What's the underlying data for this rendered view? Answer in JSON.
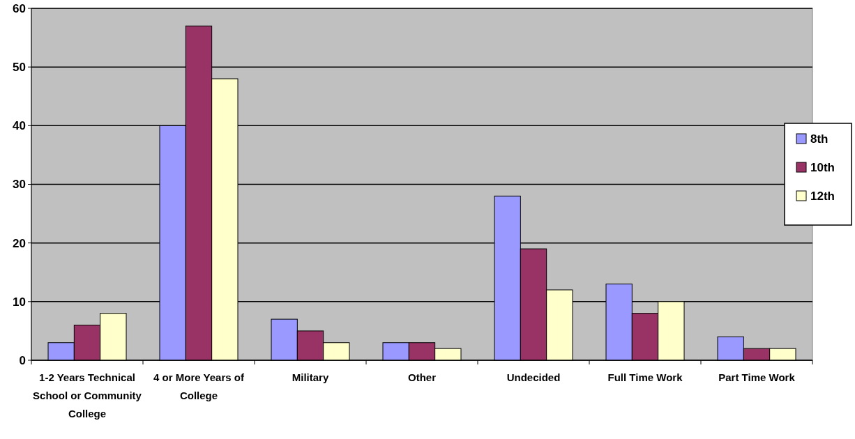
{
  "chart_data": {
    "type": "bar",
    "categories": [
      "1-2 Years Technical School or Community College",
      "4 or More Years of College",
      "Military",
      "Other",
      "Undecided",
      "Full Time Work",
      "Part Time Work"
    ],
    "series": [
      {
        "name": "8th",
        "color": "#9999ff",
        "values": [
          3,
          40,
          7,
          3,
          28,
          13,
          4
        ]
      },
      {
        "name": "10th",
        "color": "#993366",
        "values": [
          6,
          57,
          5,
          3,
          19,
          8,
          2
        ]
      },
      {
        "name": "12th",
        "color": "#ffffcc",
        "values": [
          8,
          48,
          3,
          2,
          12,
          10,
          2
        ]
      }
    ],
    "ylim": [
      0,
      60
    ],
    "yticks": [
      0,
      10,
      20,
      30,
      40,
      50,
      60
    ],
    "grid": "y",
    "legend": "right"
  }
}
